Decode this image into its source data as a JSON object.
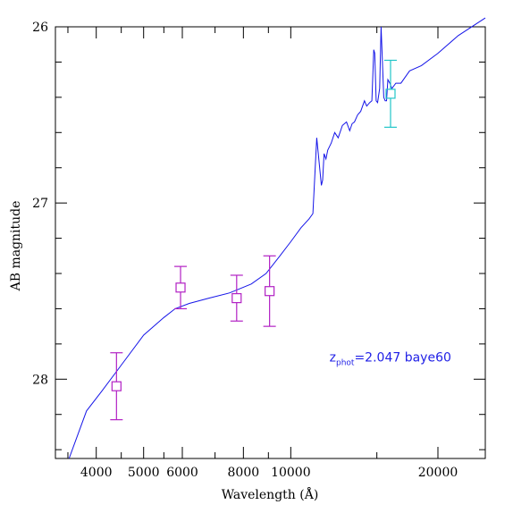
{
  "chart_data": {
    "type": "line",
    "xlabel": "Wavelength (Å)",
    "ylabel": "AB magnitude",
    "xscale": "log",
    "xlim": [
      3300,
      25000
    ],
    "ylim": [
      28.45,
      26.0
    ],
    "x_ticks": [
      4000,
      5000,
      6000,
      8000,
      10000,
      20000
    ],
    "x_tick_labels": [
      "4000",
      "5000",
      "6000",
      "8000",
      "10000",
      "20000"
    ],
    "y_ticks": [
      26,
      27,
      28
    ],
    "y_tick_labels": [
      "26",
      "27",
      "28"
    ],
    "colors": {
      "model": "#1515e8",
      "optical_points": "#b221c4",
      "nir_point": "#22c5c8"
    },
    "annotation": {
      "z_symbol": "z",
      "subscript": "phot",
      "text": "=2.047 baye60",
      "x": 12000,
      "y": 27.9
    },
    "series": [
      {
        "type": "line",
        "x": [
          3520,
          3820,
          4100,
          4500,
          5000,
          5500,
          5800,
          6200,
          6800,
          7500,
          8300,
          8900,
          9500,
          10000,
          10500,
          10900,
          11100,
          11300,
          11550,
          11620,
          11700,
          11800,
          11900,
          12100,
          12300,
          12500,
          12750,
          13000,
          13200,
          13350,
          13500,
          13700,
          13900,
          14150,
          14300,
          14500,
          14650,
          14780,
          14850,
          14950,
          15050,
          15200,
          15300,
          15500,
          15600,
          15700,
          15800,
          15950,
          16100,
          16400,
          16800,
          17500,
          18500,
          20000,
          22000,
          25000
        ],
        "y": [
          28.45,
          28.18,
          28.07,
          27.92,
          27.75,
          27.65,
          27.6,
          27.57,
          27.54,
          27.51,
          27.46,
          27.4,
          27.3,
          27.22,
          27.14,
          27.09,
          27.06,
          26.63,
          26.9,
          26.87,
          26.72,
          26.75,
          26.7,
          26.66,
          26.6,
          26.63,
          26.56,
          26.54,
          26.59,
          26.55,
          26.54,
          26.5,
          26.48,
          26.42,
          26.45,
          26.43,
          26.42,
          26.13,
          26.15,
          26.42,
          26.43,
          26.35,
          26.0,
          26.4,
          26.42,
          26.42,
          26.3,
          26.32,
          26.35,
          26.32,
          26.32,
          26.25,
          26.22,
          26.15,
          26.05,
          25.95
        ]
      },
      {
        "type": "errorbar",
        "x": [
          4400,
          5950,
          7750,
          9050
        ],
        "y": [
          28.04,
          27.48,
          27.54,
          27.5
        ],
        "yerr": [
          0.19,
          0.12,
          0.13,
          0.2
        ]
      },
      {
        "type": "errorbar",
        "x": [
          16000
        ],
        "y": [
          26.38
        ],
        "yerr": [
          0.19
        ]
      }
    ]
  }
}
